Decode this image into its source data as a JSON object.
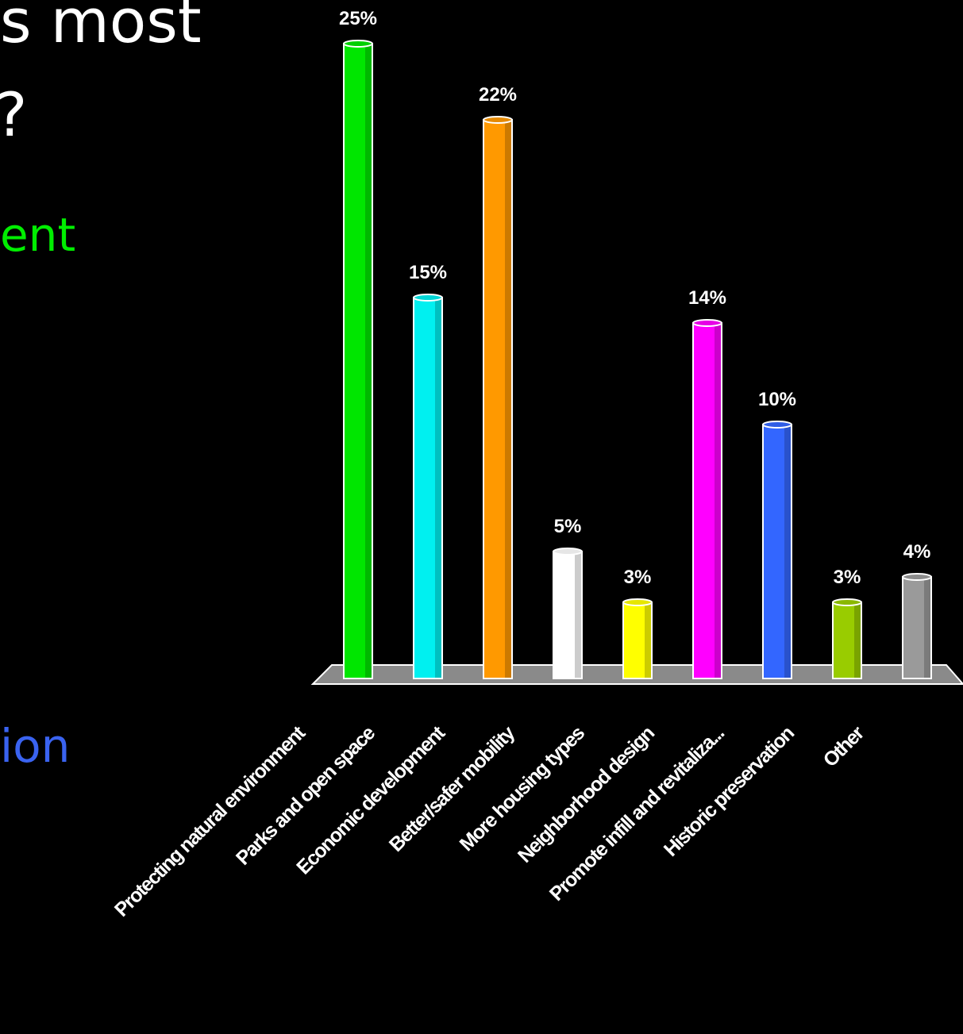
{
  "slide": {
    "title_fragment_1": "s most",
    "title_fragment_2": "?",
    "answer_fragment_1": "ent",
    "answer_fragment_2": "ion"
  },
  "colors": {
    "background": "#000000",
    "answer_1": "#00ee00",
    "answer_2": "#3a63f0",
    "floor": "#8a8a8a"
  },
  "chart_data": {
    "type": "bar",
    "title": "",
    "xlabel": "",
    "ylabel": "",
    "ylim": [
      0,
      25
    ],
    "grid": false,
    "legend": "none",
    "categories": [
      "Protecting natural environment",
      "Parks and open space",
      "Economic development",
      "Better/safer mobility",
      "More housing types",
      "Neighborhood design",
      "Promote infill and revitaliza...",
      "Historic preservation",
      "Other"
    ],
    "values": [
      25,
      15,
      22,
      5,
      3,
      14,
      10,
      3,
      4
    ],
    "value_labels": [
      "25%",
      "15%",
      "22%",
      "5%",
      "3%",
      "14%",
      "10%",
      "3%",
      "4%"
    ],
    "bar_colors": [
      "#00e600",
      "#00f0f0",
      "#ff9900",
      "#ffffff",
      "#ffff00",
      "#ff00ff",
      "#3366ff",
      "#99cc00",
      "#9a9a9a"
    ]
  }
}
